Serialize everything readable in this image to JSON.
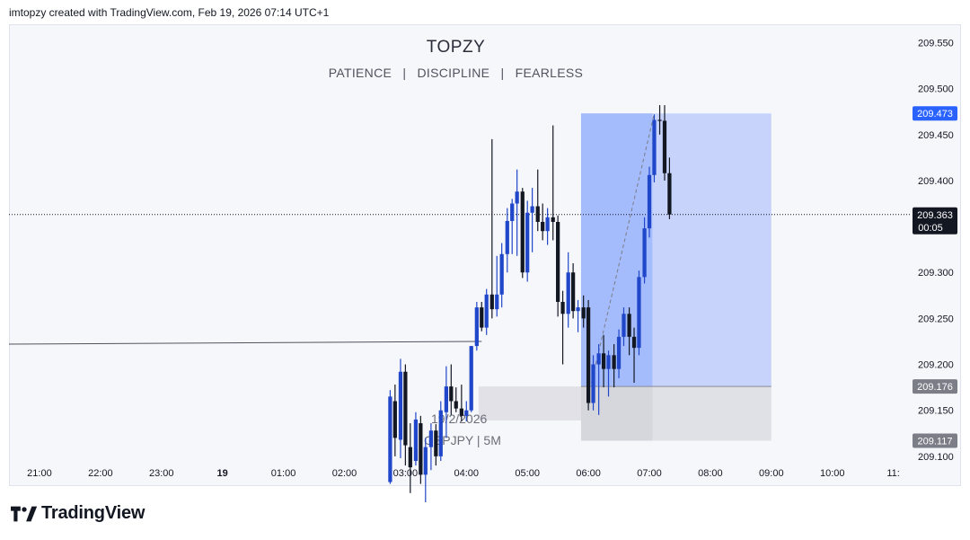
{
  "header": {
    "attribution": "imtopzy created with TradingView.com, Feb 19, 2026 07:14 UTC+1"
  },
  "overlay": {
    "title": "TOPZY",
    "subtitle": [
      "PATIENCE",
      "|",
      "DISCIPLINE",
      "|",
      "FEARLESS"
    ],
    "watermark_date": "19/2/2026",
    "watermark_symbol": "GBPJPY | 5M"
  },
  "footer": {
    "brand": "TradingView"
  },
  "chart_data": {
    "type": "candlestick",
    "symbol": "GBPJPY",
    "interval": "5M",
    "y_axis": {
      "range": [
        209.094,
        209.57
      ],
      "ticks": [
        "209.550",
        "209.500",
        "209.450",
        "209.400",
        "209.300",
        "209.250",
        "209.200",
        "209.150",
        "209.100"
      ]
    },
    "x_axis": {
      "range_hours": [
        20.5,
        35.3
      ],
      "ticks": [
        {
          "label": "21:00",
          "h": 21
        },
        {
          "label": "22:00",
          "h": 22
        },
        {
          "label": "23:00",
          "h": 23
        },
        {
          "label": "19",
          "h": 24
        },
        {
          "label": "01:00",
          "h": 25
        },
        {
          "label": "02:00",
          "h": 26
        },
        {
          "label": "03:00",
          "h": 27
        },
        {
          "label": "04:00",
          "h": 28
        },
        {
          "label": "05:00",
          "h": 29
        },
        {
          "label": "06:00",
          "h": 30
        },
        {
          "label": "07:00",
          "h": 31
        },
        {
          "label": "08:00",
          "h": 32
        },
        {
          "label": "09:00",
          "h": 33
        },
        {
          "label": "10:00",
          "h": 34
        },
        {
          "label": "11:",
          "h": 35
        }
      ]
    },
    "current_price": {
      "label": "209.363",
      "value": 209.363,
      "countdown": "00:05"
    },
    "price_labels": [
      {
        "label": "209.473",
        "value": 209.473,
        "role": "target"
      },
      {
        "label": "209.176",
        "value": 209.176,
        "role": "entry"
      },
      {
        "label": "209.117",
        "value": 209.117,
        "role": "stop"
      }
    ],
    "horizontal_line": {
      "value": 209.222,
      "slope_end": 209.225
    },
    "long_position": {
      "entry": 209.176,
      "target": 209.473,
      "stop": 209.117,
      "start_hour": 29.88,
      "end_hour": 33.0,
      "progress_end_hour": 31.05,
      "colors": {
        "profit": "#c7d3fb",
        "profit_filled": "#a5bcfc",
        "loss": "#e0e1e6",
        "loss_filled": "#cfd0d6"
      }
    },
    "gray_box": {
      "start_hour": 28.2,
      "end_hour": 31.1,
      "low": 209.139,
      "high": 209.176
    },
    "candle_interval_hours": 0.0833,
    "candles": [
      {
        "t": 26.75,
        "o": 209.072,
        "h": 209.172,
        "l": 209.07,
        "c": 209.165
      },
      {
        "t": 26.83,
        "o": 209.16,
        "h": 209.178,
        "l": 209.1,
        "c": 209.12
      },
      {
        "t": 26.92,
        "o": 209.118,
        "h": 209.206,
        "l": 209.098,
        "c": 209.192
      },
      {
        "t": 27.0,
        "o": 209.192,
        "h": 209.2,
        "l": 209.09,
        "c": 209.112
      },
      {
        "t": 27.08,
        "o": 209.11,
        "h": 209.136,
        "l": 209.06,
        "c": 209.088
      },
      {
        "t": 27.17,
        "o": 209.095,
        "h": 209.148,
        "l": 209.09,
        "c": 209.14
      },
      {
        "t": 27.25,
        "o": 209.136,
        "h": 209.144,
        "l": 209.07,
        "c": 209.08
      },
      {
        "t": 27.33,
        "o": 209.08,
        "h": 209.12,
        "l": 209.05,
        "c": 209.11
      },
      {
        "t": 27.42,
        "o": 209.11,
        "h": 209.136,
        "l": 209.085,
        "c": 209.128
      },
      {
        "t": 27.5,
        "o": 209.128,
        "h": 209.135,
        "l": 209.09,
        "c": 209.1
      },
      {
        "t": 27.58,
        "o": 209.1,
        "h": 209.16,
        "l": 209.095,
        "c": 209.15
      },
      {
        "t": 27.67,
        "o": 209.148,
        "h": 209.198,
        "l": 209.12,
        "c": 209.176
      },
      {
        "t": 27.75,
        "o": 209.176,
        "h": 209.2,
        "l": 209.145,
        "c": 209.16
      },
      {
        "t": 27.83,
        "o": 209.16,
        "h": 209.175,
        "l": 209.148,
        "c": 209.152
      },
      {
        "t": 27.92,
        "o": 209.152,
        "h": 209.178,
        "l": 209.138,
        "c": 209.144
      },
      {
        "t": 28.0,
        "o": 209.144,
        "h": 209.16,
        "l": 209.138,
        "c": 209.15
      },
      {
        "t": 28.08,
        "o": 209.15,
        "h": 209.22,
        "l": 209.148,
        "c": 209.22
      },
      {
        "t": 28.17,
        "o": 209.22,
        "h": 209.268,
        "l": 209.215,
        "c": 209.262
      },
      {
        "t": 28.25,
        "o": 209.262,
        "h": 209.268,
        "l": 209.236,
        "c": 209.24
      },
      {
        "t": 28.33,
        "o": 209.24,
        "h": 209.282,
        "l": 209.232,
        "c": 209.276
      },
      {
        "t": 28.42,
        "o": 209.276,
        "h": 209.445,
        "l": 209.25,
        "c": 209.26
      },
      {
        "t": 28.5,
        "o": 209.26,
        "h": 209.318,
        "l": 209.252,
        "c": 209.276
      },
      {
        "t": 28.58,
        "o": 209.276,
        "h": 209.332,
        "l": 209.262,
        "c": 209.32
      },
      {
        "t": 28.67,
        "o": 209.32,
        "h": 209.37,
        "l": 209.3,
        "c": 209.356
      },
      {
        "t": 28.75,
        "o": 209.356,
        "h": 209.38,
        "l": 209.32,
        "c": 209.375
      },
      {
        "t": 28.83,
        "o": 209.375,
        "h": 209.412,
        "l": 209.318,
        "c": 209.388
      },
      {
        "t": 28.92,
        "o": 209.388,
        "h": 209.392,
        "l": 209.294,
        "c": 209.3
      },
      {
        "t": 29.0,
        "o": 209.3,
        "h": 209.378,
        "l": 209.29,
        "c": 209.365
      },
      {
        "t": 29.08,
        "o": 209.365,
        "h": 209.392,
        "l": 209.322,
        "c": 209.372
      },
      {
        "t": 29.17,
        "o": 209.372,
        "h": 209.412,
        "l": 209.345,
        "c": 209.355
      },
      {
        "t": 29.25,
        "o": 209.355,
        "h": 209.375,
        "l": 209.335,
        "c": 209.345
      },
      {
        "t": 29.33,
        "o": 209.345,
        "h": 209.37,
        "l": 209.33,
        "c": 209.36
      },
      {
        "t": 29.42,
        "o": 209.36,
        "h": 209.46,
        "l": 209.335,
        "c": 209.355
      },
      {
        "t": 29.5,
        "o": 209.355,
        "h": 209.362,
        "l": 209.252,
        "c": 209.268
      },
      {
        "t": 29.58,
        "o": 209.268,
        "h": 209.28,
        "l": 209.2,
        "c": 209.255
      },
      {
        "t": 29.67,
        "o": 209.255,
        "h": 209.322,
        "l": 209.24,
        "c": 209.3
      },
      {
        "t": 29.75,
        "o": 209.3,
        "h": 209.31,
        "l": 209.25,
        "c": 209.258
      },
      {
        "t": 29.83,
        "o": 209.258,
        "h": 209.27,
        "l": 209.235,
        "c": 209.262
      },
      {
        "t": 29.92,
        "o": 209.262,
        "h": 209.275,
        "l": 209.24,
        "c": 209.25
      },
      {
        "t": 30.0,
        "o": 209.262,
        "h": 209.27,
        "l": 209.15,
        "c": 209.158
      },
      {
        "t": 30.08,
        "o": 209.158,
        "h": 209.21,
        "l": 209.15,
        "c": 209.2
      },
      {
        "t": 30.17,
        "o": 209.2,
        "h": 209.222,
        "l": 209.145,
        "c": 209.212
      },
      {
        "t": 30.25,
        "o": 209.212,
        "h": 209.232,
        "l": 209.175,
        "c": 209.195
      },
      {
        "t": 30.33,
        "o": 209.195,
        "h": 209.215,
        "l": 209.165,
        "c": 209.21
      },
      {
        "t": 30.42,
        "o": 209.21,
        "h": 209.222,
        "l": 209.175,
        "c": 209.195
      },
      {
        "t": 30.5,
        "o": 209.195,
        "h": 209.238,
        "l": 209.185,
        "c": 209.23
      },
      {
        "t": 30.58,
        "o": 209.23,
        "h": 209.262,
        "l": 209.22,
        "c": 209.255
      },
      {
        "t": 30.67,
        "o": 209.255,
        "h": 209.262,
        "l": 209.21,
        "c": 209.23
      },
      {
        "t": 30.75,
        "o": 209.23,
        "h": 209.24,
        "l": 209.18,
        "c": 209.218
      },
      {
        "t": 30.83,
        "o": 209.218,
        "h": 209.302,
        "l": 209.21,
        "c": 209.295
      },
      {
        "t": 30.92,
        "o": 209.295,
        "h": 209.36,
        "l": 209.288,
        "c": 209.348
      },
      {
        "t": 31.0,
        "o": 209.348,
        "h": 209.415,
        "l": 209.338,
        "c": 209.406
      },
      {
        "t": 31.08,
        "o": 209.406,
        "h": 209.472,
        "l": 209.398,
        "c": 209.466
      },
      {
        "t": 31.17,
        "o": 209.466,
        "h": 209.482,
        "l": 209.45,
        "c": 209.465
      },
      {
        "t": 31.25,
        "o": 209.465,
        "h": 209.482,
        "l": 209.4,
        "c": 209.408
      },
      {
        "t": 31.33,
        "o": 209.408,
        "h": 209.425,
        "l": 209.358,
        "c": 209.363
      }
    ]
  }
}
